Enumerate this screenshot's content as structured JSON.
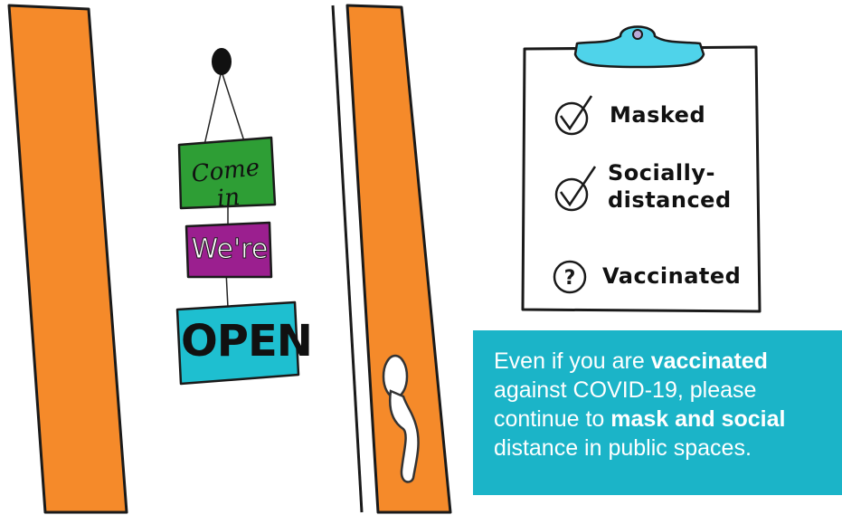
{
  "signs": {
    "green": "Come in",
    "purple": "We're",
    "teal": "OPEN"
  },
  "checklist": {
    "items": [
      {
        "status": "check",
        "label_lines": [
          "Masked"
        ]
      },
      {
        "status": "check",
        "label_lines": [
          "Socially-",
          "distanced"
        ]
      },
      {
        "status": "question",
        "label_lines": [
          "Vaccinated"
        ]
      }
    ]
  },
  "message": {
    "part1": "Even if you are ",
    "bold1": "vaccinated",
    "part2": " against COVID-19, please continue to ",
    "bold2": "mask and social",
    "part3": " distance in public spaces."
  },
  "colors": {
    "door_orange": "#f58a2a",
    "sign_green": "#2e9e35",
    "sign_purple": "#9b1f8f",
    "sign_teal": "#1ebfd0",
    "clip_blue": "#4fd3ea",
    "info_bg": "#1bb4c8"
  }
}
